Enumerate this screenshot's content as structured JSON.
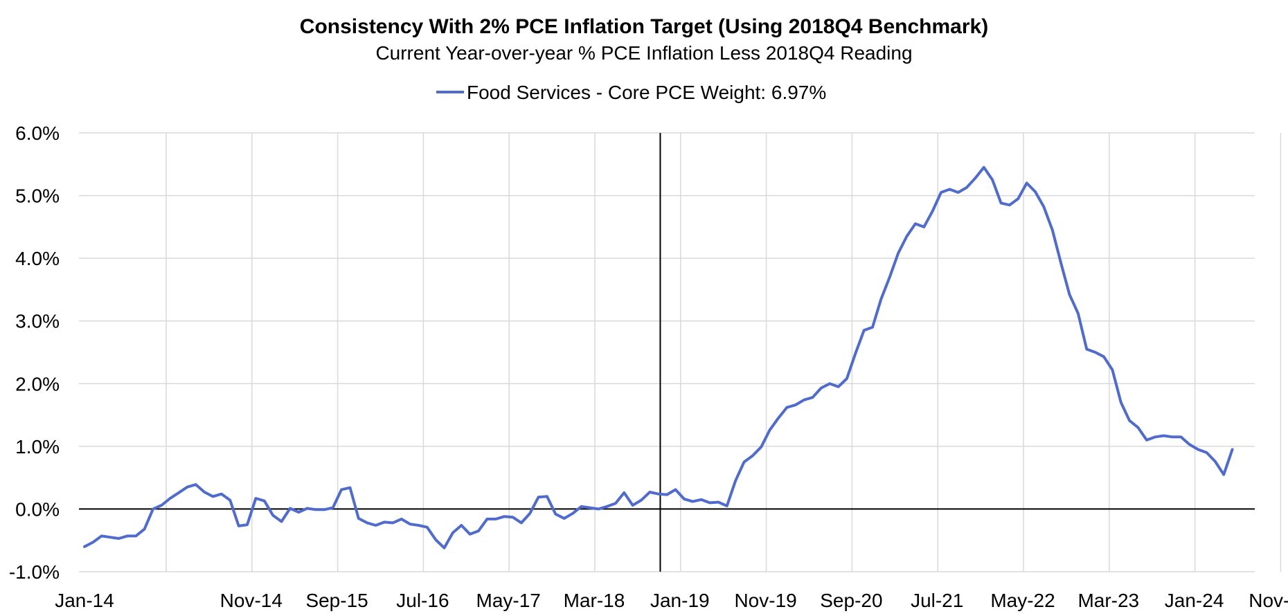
{
  "chart_data": {
    "type": "line",
    "title": "Consistency With 2% PCE Inflation Target (Using 2018Q4 Benchmark)",
    "subtitle": "Current Year-over-year % PCE Inflation Less 2018Q4 Reading",
    "xlabel": "",
    "ylabel": "",
    "ylim": [
      -1.0,
      6.0
    ],
    "y_ticks": [
      "6.0%",
      "5.0%",
      "4.0%",
      "3.0%",
      "2.0%",
      "1.0%",
      "0.0%",
      "-1.0%"
    ],
    "y_tick_values": [
      6,
      5,
      4,
      3,
      2,
      1,
      0,
      -1
    ],
    "x_tick_labels": [
      "Jan-14",
      "Nov-14",
      "Sep-15",
      "Jul-16",
      "May-17",
      "Mar-18",
      "Jan-19",
      "Nov-19",
      "Sep-20",
      "Jul-21",
      "May-22",
      "Mar-23",
      "Jan-24",
      "Nov-24"
    ],
    "x_tick_indices": [
      0,
      10,
      20,
      30,
      40,
      50,
      60,
      70,
      80,
      90,
      100,
      110,
      120,
      130
    ],
    "start_month": "Jan-14",
    "benchmark_line_index": 58,
    "grid": true,
    "legend_position": "top-center",
    "series": [
      {
        "name": "Food Services - Core PCE Weight: 6.97%",
        "color": "#4f6bcd",
        "values": [
          -0.6,
          -0.53,
          -0.43,
          -0.45,
          -0.47,
          -0.43,
          -0.43,
          -0.32,
          0.0,
          0.06,
          0.17,
          0.26,
          0.35,
          0.39,
          0.27,
          0.2,
          0.24,
          0.14,
          -0.27,
          -0.25,
          0.17,
          0.13,
          -0.1,
          -0.2,
          0.01,
          -0.05,
          0.01,
          -0.01,
          -0.01,
          0.02,
          0.31,
          0.34,
          -0.15,
          -0.22,
          -0.26,
          -0.21,
          -0.22,
          -0.16,
          -0.24,
          -0.26,
          -0.29,
          -0.49,
          -0.62,
          -0.38,
          -0.26,
          -0.4,
          -0.35,
          -0.16,
          -0.16,
          -0.12,
          -0.13,
          -0.22,
          -0.07,
          0.19,
          0.2,
          -0.08,
          -0.15,
          -0.07,
          0.04,
          0.02,
          0.0,
          0.04,
          0.09,
          0.26,
          0.06,
          0.14,
          0.27,
          0.24,
          0.23,
          0.31,
          0.16,
          0.12,
          0.15,
          0.1,
          0.11,
          0.05,
          0.45,
          0.75,
          0.85,
          0.99,
          1.26,
          1.45,
          1.62,
          1.66,
          1.74,
          1.78,
          1.93,
          2.0,
          1.95,
          2.08,
          2.48,
          2.85,
          2.9,
          3.35,
          3.7,
          4.08,
          4.35,
          4.55,
          4.5,
          4.75,
          5.05,
          5.1,
          5.05,
          5.13,
          5.28,
          5.45,
          5.25,
          4.88,
          4.85,
          4.95,
          5.2,
          5.06,
          4.82,
          4.45,
          3.92,
          3.42,
          3.12,
          2.55,
          2.5,
          2.43,
          2.22,
          1.7,
          1.41,
          1.3,
          1.1,
          1.15,
          1.17,
          1.15,
          1.15,
          1.03,
          0.95,
          0.9,
          0.76,
          0.55,
          0.95
        ]
      }
    ]
  }
}
